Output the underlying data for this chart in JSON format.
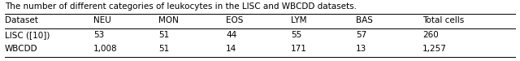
{
  "title": "The number of different categories of leukocytes in the LISC and WBCDD datasets.",
  "columns": [
    "Dataset",
    "NEU",
    "MON",
    "EOS",
    "LYM",
    "BAS",
    "Total cells"
  ],
  "rows": [
    [
      "LISC ([10])",
      "53",
      "51",
      "44",
      "55",
      "57",
      "260"
    ],
    [
      "WBCDD",
      "1,008",
      "51",
      "14",
      "171",
      "13",
      "1,257"
    ]
  ],
  "background_color": "#ffffff",
  "text_color": "#000000",
  "title_fontsize": 7.5,
  "table_fontsize": 7.5
}
